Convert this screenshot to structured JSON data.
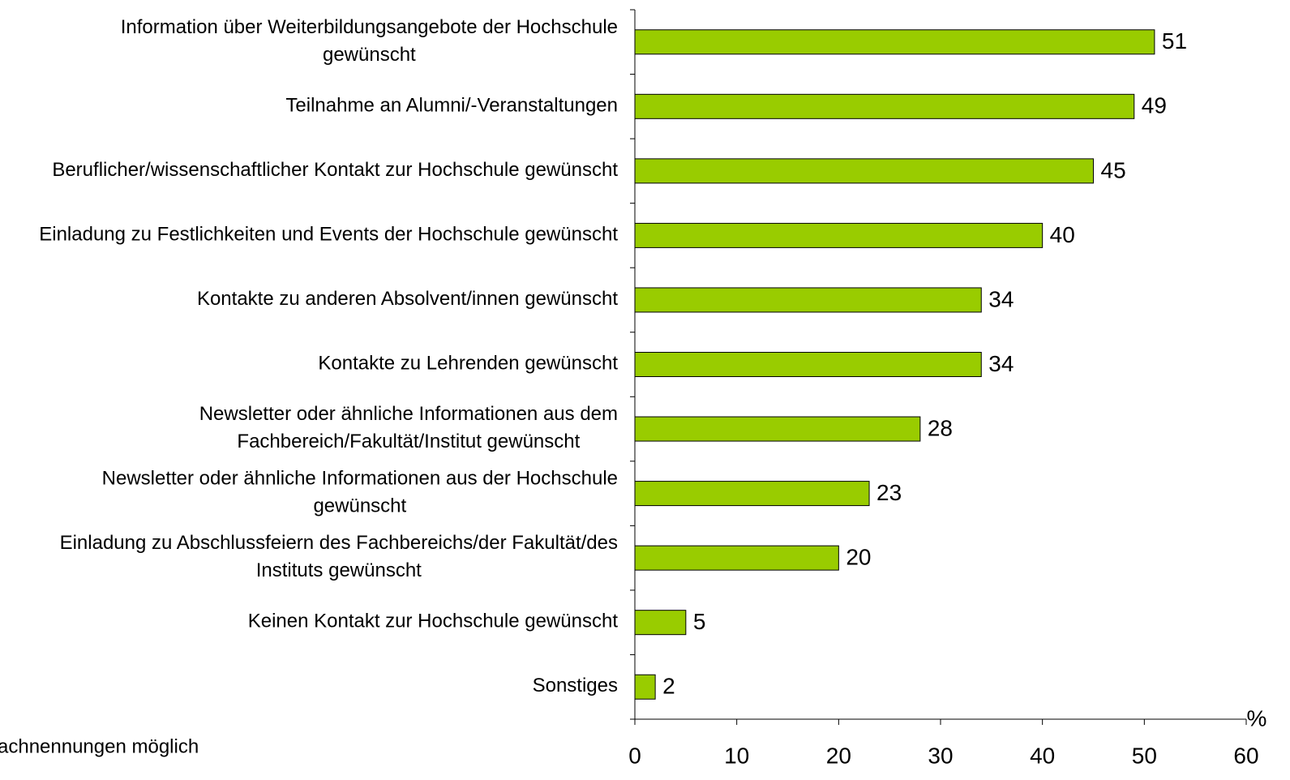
{
  "chart_data": {
    "type": "bar",
    "orientation": "horizontal",
    "categories": [
      "Information über Weiterbildungsangebote der Hochschule\ngewünscht",
      "Teilnahme an Alumni/-Veranstaltungen",
      "Beruflicher/wissenschaftlicher Kontakt zur Hochschule gewünscht",
      "Einladung zu Festlichkeiten und Events der Hochschule gewünscht",
      "Kontakte zu anderen Absolvent/innen gewünscht",
      "Kontakte zu Lehrenden gewünscht",
      "Newsletter oder ähnliche Informationen aus dem\nFachbereich/Fakultät/Institut gewünscht",
      "Newsletter oder ähnliche Informationen aus der Hochschule\ngewünscht",
      "Einladung zu Abschlussfeiern des Fachbereichs/der Fakultät/des\nInstituts gewünscht",
      "Keinen Kontakt zur Hochschule gewünscht",
      "Sonstiges"
    ],
    "values": [
      51,
      49,
      45,
      40,
      34,
      34,
      28,
      23,
      20,
      5,
      2
    ],
    "color": "#99cc00",
    "xlim": [
      0,
      60
    ],
    "xticks": [
      0,
      10,
      20,
      30,
      40,
      50,
      60
    ],
    "xlabel": "%",
    "footnote": "achnennungen möglich"
  }
}
